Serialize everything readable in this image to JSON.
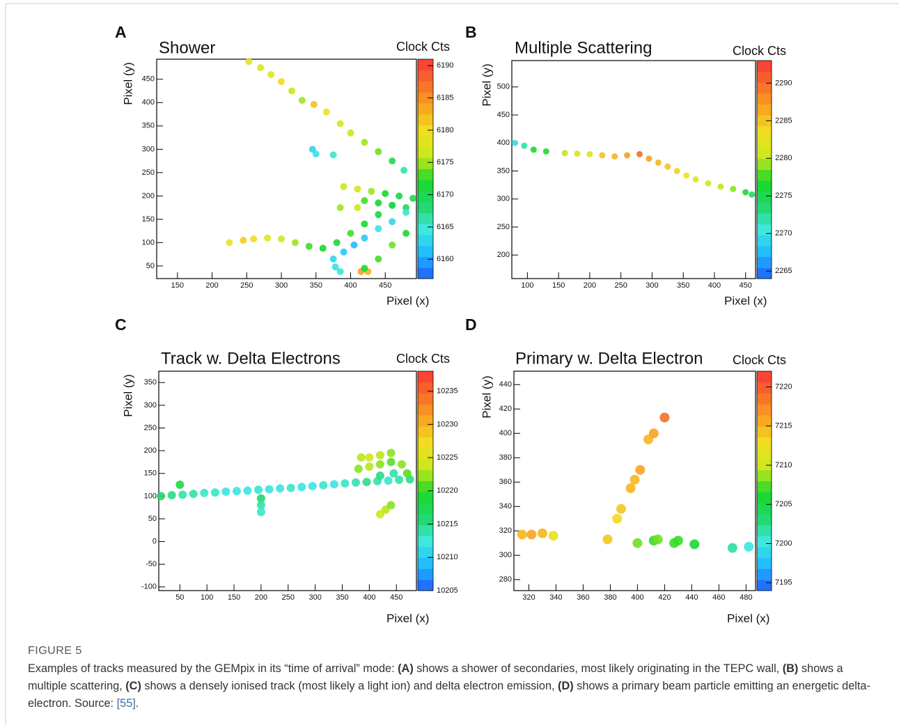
{
  "figure": {
    "label": "FIGURE 5",
    "caption": [
      {
        "text": "Examples of tracks measured by the GEMpix in its “time of arrival” mode: ",
        "style": "plain"
      },
      {
        "text": "(A)",
        "style": "bold"
      },
      {
        "text": " shows a shower of secondaries, most likely originating in the TEPC wall, ",
        "style": "plain"
      },
      {
        "text": "(B)",
        "style": "bold"
      },
      {
        "text": " shows a multiple scattering, ",
        "style": "plain"
      },
      {
        "text": "(C)",
        "style": "bold"
      },
      {
        "text": " shows a densely ionised track (most likely a light ion) and delta electron emission, ",
        "style": "plain"
      },
      {
        "text": "(D)",
        "style": "bold"
      },
      {
        "text": " shows a primary beam particle emitting an energetic delta-electron. Source: ",
        "style": "plain"
      },
      {
        "text": "[55]",
        "style": "link"
      },
      {
        "text": ".",
        "style": "plain"
      }
    ]
  },
  "chart_data": [
    {
      "type": "scatter",
      "panel": "A",
      "title": "Shower",
      "colorbar_title": "Clock Cts",
      "xlabel": "Pixel (x)",
      "ylabel": "Pixel (y)",
      "colormap": [
        "#1f5fff",
        "#1fb8ff",
        "#3ee8e0",
        "#22d86a",
        "#18d82a",
        "#c8e81c",
        "#f0e020",
        "#f8a820",
        "#f87028",
        "#f83838"
      ],
      "x": [
        253,
        270,
        285,
        300,
        315,
        330,
        347,
        365,
        385,
        400,
        420,
        440,
        460,
        477,
        345,
        350,
        375,
        390,
        410,
        430,
        450,
        470,
        490,
        420,
        440,
        460,
        480,
        225,
        245,
        260,
        280,
        300,
        320,
        340,
        360,
        380,
        400,
        420,
        440,
        460,
        375,
        390,
        405,
        420,
        440,
        460,
        480,
        378,
        385,
        415,
        425,
        420,
        440,
        460,
        480,
        385,
        410
      ],
      "y": [
        488,
        475,
        460,
        445,
        425,
        405,
        396,
        380,
        355,
        335,
        315,
        295,
        275,
        255,
        300,
        290,
        288,
        220,
        215,
        210,
        205,
        200,
        195,
        190,
        185,
        180,
        175,
        100,
        105,
        108,
        110,
        108,
        100,
        92,
        88,
        100,
        120,
        140,
        160,
        180,
        65,
        80,
        95,
        110,
        130,
        145,
        165,
        48,
        38,
        38,
        38,
        45,
        65,
        95,
        120,
        175,
        175
      ],
      "values": [
        6178,
        6177,
        6178,
        6180,
        6176,
        6175,
        6182,
        6179,
        6177,
        6176,
        6175,
        6174,
        6170,
        6166,
        6163,
        6164,
        6165,
        6176,
        6177,
        6175,
        6172,
        6171,
        6170,
        6173,
        6172,
        6171,
        6169,
        6179,
        6181,
        6180,
        6178,
        6177,
        6175,
        6173,
        6172,
        6171,
        6173,
        6172,
        6171,
        6170,
        6163,
        6162,
        6161,
        6162,
        6164,
        6163,
        6165,
        6164,
        6165,
        6184,
        6183,
        6172,
        6173,
        6174,
        6172,
        6175,
        6176
      ],
      "xlim": [
        120,
        495
      ],
      "ylim": [
        23,
        493
      ],
      "clim": [
        6157,
        6191
      ],
      "xticks": [
        150,
        200,
        250,
        300,
        350,
        400,
        450
      ],
      "yticks": [
        50,
        100,
        150,
        200,
        250,
        300,
        350,
        400,
        450
      ],
      "cticks": [
        6160,
        6165,
        6170,
        6175,
        6180,
        6185,
        6190
      ]
    },
    {
      "type": "scatter",
      "panel": "B",
      "title": "Multiple Scattering",
      "colorbar_title": "Clock Cts",
      "xlabel": "Pixel (x)",
      "ylabel": "Pixel (y)",
      "colormap": [
        "#1f5fff",
        "#1fb8ff",
        "#3ee8e0",
        "#22d86a",
        "#18d82a",
        "#c8e81c",
        "#f0e020",
        "#f8a820",
        "#f87028",
        "#f83838"
      ],
      "x": [
        80,
        95,
        110,
        130,
        160,
        180,
        200,
        220,
        240,
        260,
        280,
        295,
        310,
        325,
        340,
        355,
        370,
        390,
        410,
        430,
        450,
        460
      ],
      "y": [
        400,
        395,
        388,
        385,
        382,
        381,
        380,
        378,
        376,
        378,
        380,
        372,
        365,
        358,
        350,
        342,
        335,
        328,
        322,
        318,
        312,
        308
      ],
      "values": [
        2270,
        2272,
        2276,
        2277,
        2280,
        2281,
        2282,
        2285,
        2286,
        2287,
        2290,
        2287,
        2286,
        2285,
        2284,
        2283,
        2282,
        2281,
        2280,
        2279,
        2277,
        2274
      ],
      "xlim": [
        75,
        466
      ],
      "ylim": [
        158,
        547
      ],
      "clim": [
        2264,
        2293
      ],
      "xticks": [
        100,
        150,
        200,
        250,
        300,
        350,
        400,
        450
      ],
      "yticks": [
        200,
        250,
        300,
        350,
        400,
        450,
        500
      ],
      "cticks": [
        2265,
        2270,
        2275,
        2280,
        2285,
        2290
      ]
    },
    {
      "type": "scatter",
      "panel": "C",
      "title": "Track w. Delta Electrons",
      "colorbar_title": "Clock Cts",
      "xlabel": "Pixel (x)",
      "ylabel": "Pixel (y)",
      "colormap": [
        "#1f5fff",
        "#1fb8ff",
        "#3ee8e0",
        "#22d86a",
        "#18d82a",
        "#c8e81c",
        "#f0e020",
        "#f8a820",
        "#f87028",
        "#f83838"
      ],
      "x": [
        15,
        35,
        55,
        75,
        95,
        115,
        135,
        155,
        175,
        195,
        215,
        235,
        255,
        275,
        295,
        315,
        335,
        355,
        375,
        395,
        415,
        435,
        455,
        475,
        50,
        200,
        200,
        200,
        380,
        400,
        420,
        440,
        460,
        400,
        420,
        440,
        470,
        385,
        420,
        445,
        420,
        430,
        440
      ],
      "y": [
        100,
        102,
        103,
        105,
        107,
        108,
        110,
        111,
        112,
        114,
        115,
        117,
        118,
        120,
        122,
        124,
        126,
        128,
        130,
        131,
        133,
        134,
        136,
        137,
        125,
        95,
        80,
        65,
        160,
        165,
        170,
        175,
        170,
        185,
        190,
        195,
        150,
        185,
        145,
        150,
        60,
        70,
        80
      ],
      "values": [
        10216,
        10215,
        10214,
        10214,
        10213,
        10213,
        10212,
        10212,
        10212,
        10213,
        10212,
        10212,
        10213,
        10212,
        10212,
        10213,
        10212,
        10213,
        10214,
        10215,
        10214,
        10213,
        10214,
        10215,
        10218,
        10216,
        10214,
        10213,
        10222,
        10223,
        10222,
        10221,
        10222,
        10224,
        10223,
        10222,
        10221,
        10223,
        10215,
        10214,
        10224,
        10223,
        10222
      ],
      "xlim": [
        11,
        487
      ],
      "ylim": [
        -108,
        375
      ],
      "clim": [
        10205,
        10238
      ],
      "xticks": [
        50,
        100,
        150,
        200,
        250,
        300,
        350,
        400,
        450
      ],
      "yticks": [
        -100,
        -50,
        0,
        50,
        100,
        150,
        200,
        250,
        300,
        350
      ],
      "cticks": [
        10205,
        10210,
        10215,
        10220,
        10225,
        10230,
        10235
      ]
    },
    {
      "type": "scatter",
      "panel": "D",
      "title": "Primary w. Delta Electron",
      "colorbar_title": "Clock Cts",
      "xlabel": "Pixel (x)",
      "ylabel": "Pixel (y)",
      "colormap": [
        "#1f5fff",
        "#1fb8ff",
        "#3ee8e0",
        "#22d86a",
        "#18d82a",
        "#c8e81c",
        "#f0e020",
        "#f8a820",
        "#f87028",
        "#f83838"
      ],
      "x": [
        315,
        322,
        330,
        338,
        378,
        385,
        388,
        395,
        398,
        402,
        408,
        412,
        420,
        400,
        412,
        415,
        427,
        430,
        442,
        470,
        482
      ],
      "y": [
        317,
        317,
        318,
        316,
        313,
        330,
        338,
        355,
        362,
        370,
        395,
        400,
        413,
        310,
        312,
        313,
        310,
        312,
        309,
        306,
        307
      ],
      "values": [
        7215,
        7216,
        7215,
        7212,
        7214,
        7213,
        7214,
        7215,
        7215,
        7216,
        7215,
        7216,
        7219,
        7208,
        7207,
        7208,
        7207,
        7207,
        7206,
        7202,
        7200
      ],
      "xlim": [
        309,
        487
      ],
      "ylim": [
        271,
        451
      ],
      "clim": [
        7194,
        7222
      ],
      "xticks": [
        320,
        340,
        360,
        380,
        400,
        420,
        440,
        460,
        480
      ],
      "yticks": [
        280,
        300,
        320,
        340,
        360,
        380,
        400,
        420,
        440
      ],
      "cticks": [
        7195,
        7200,
        7205,
        7210,
        7215,
        7220
      ]
    }
  ]
}
